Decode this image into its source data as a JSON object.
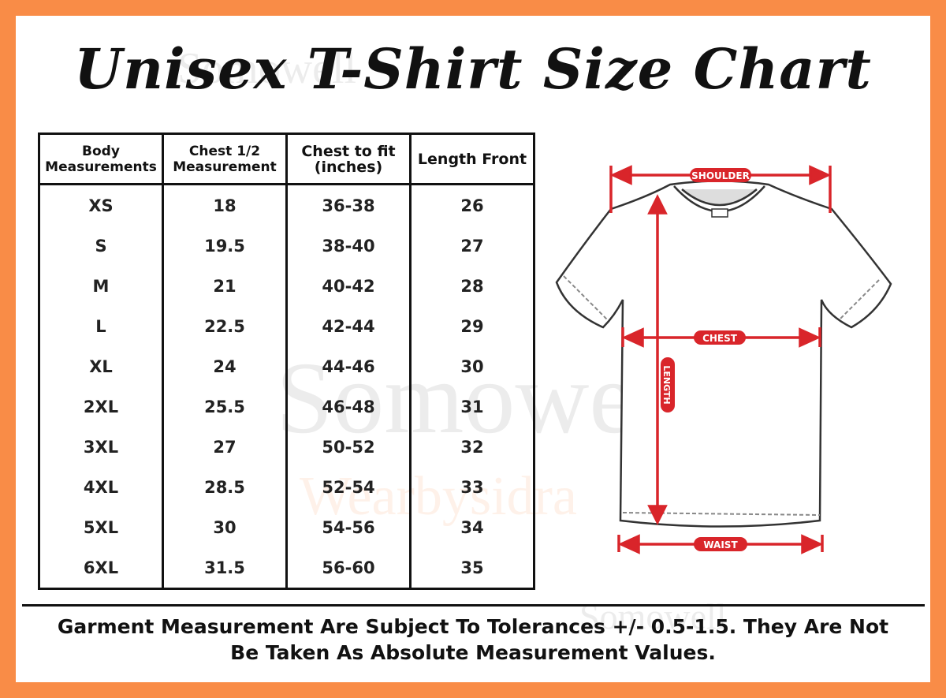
{
  "title": "Unisex T-Shirt Size Chart",
  "watermark": {
    "brand": "Somowell",
    "sub": "Wearbysidra"
  },
  "table": {
    "headers": [
      "Body Measurements",
      "Chest 1/2 Measurement",
      "Chest to fit (inches)",
      "Length Front"
    ],
    "rows": [
      [
        "XS",
        "18",
        "36-38",
        "26"
      ],
      [
        "S",
        "19.5",
        "38-40",
        "27"
      ],
      [
        "M",
        "21",
        "40-42",
        "28"
      ],
      [
        "L",
        "22.5",
        "42-44",
        "29"
      ],
      [
        "XL",
        "24",
        "44-46",
        "30"
      ],
      [
        "2XL",
        "25.5",
        "46-48",
        "31"
      ],
      [
        "3XL",
        "27",
        "50-52",
        "32"
      ],
      [
        "4XL",
        "28.5",
        "52-54",
        "33"
      ],
      [
        "5XL",
        "30",
        "54-56",
        "34"
      ],
      [
        "6XL",
        "31.5",
        "56-60",
        "35"
      ]
    ]
  },
  "diagram": {
    "shoulder": "SHOULDER",
    "chest": "CHEST",
    "length": "LENGTH",
    "waist": "WAIST"
  },
  "footer": {
    "line1": "Garment Measurement Are Subject To Tolerances +/- 0.5-1.5. They Are Not",
    "line2": "Be Taken As Absolute Measurement Values."
  },
  "colors": {
    "border": "#f98c47",
    "accent": "#d9252a"
  }
}
